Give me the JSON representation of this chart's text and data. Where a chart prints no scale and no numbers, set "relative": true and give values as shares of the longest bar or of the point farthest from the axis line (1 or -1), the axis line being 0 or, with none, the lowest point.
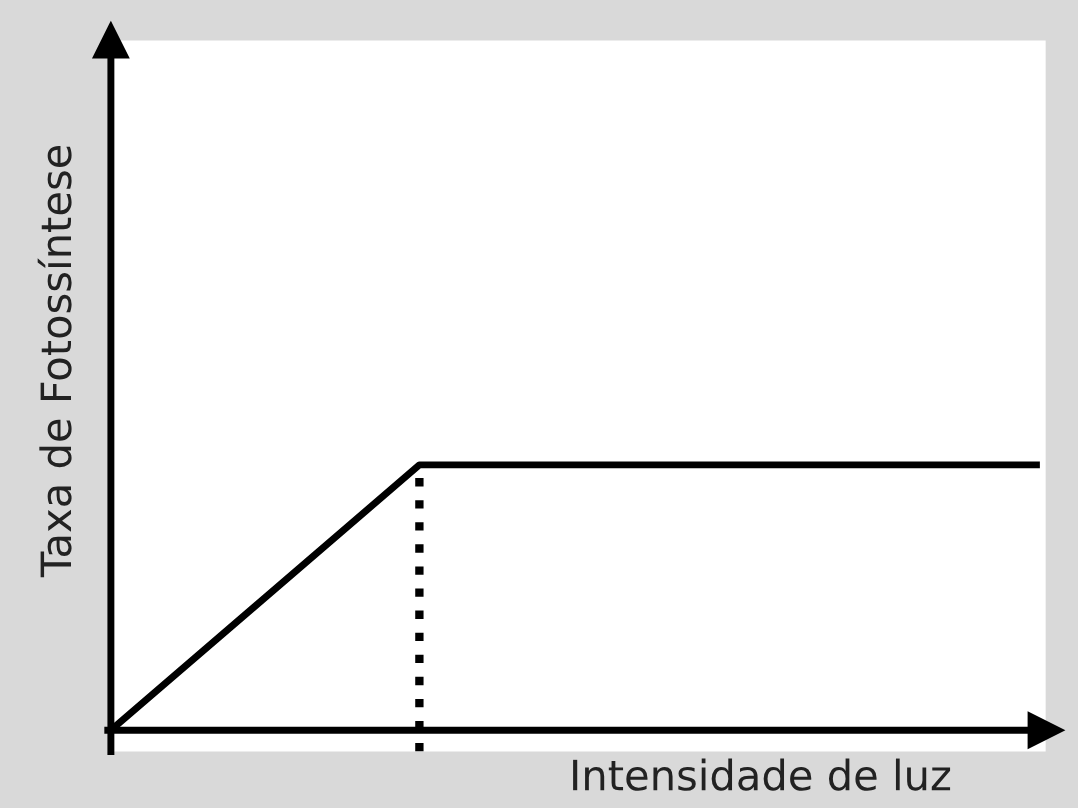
{
  "chart_data": {
    "type": "line",
    "relative": true,
    "xlabel": "Intensidade de luz",
    "ylabel": "Taxa de Fotossíntese",
    "categories": [
      null,
      null,
      null,
      null
    ],
    "series": [
      {
        "color": "#000000",
        "values": [
          0,
          1,
          1,
          1
        ]
      }
    ],
    "grid": false,
    "legend": false,
    "marker": "none",
    "line_style": "solid"
  }
}
